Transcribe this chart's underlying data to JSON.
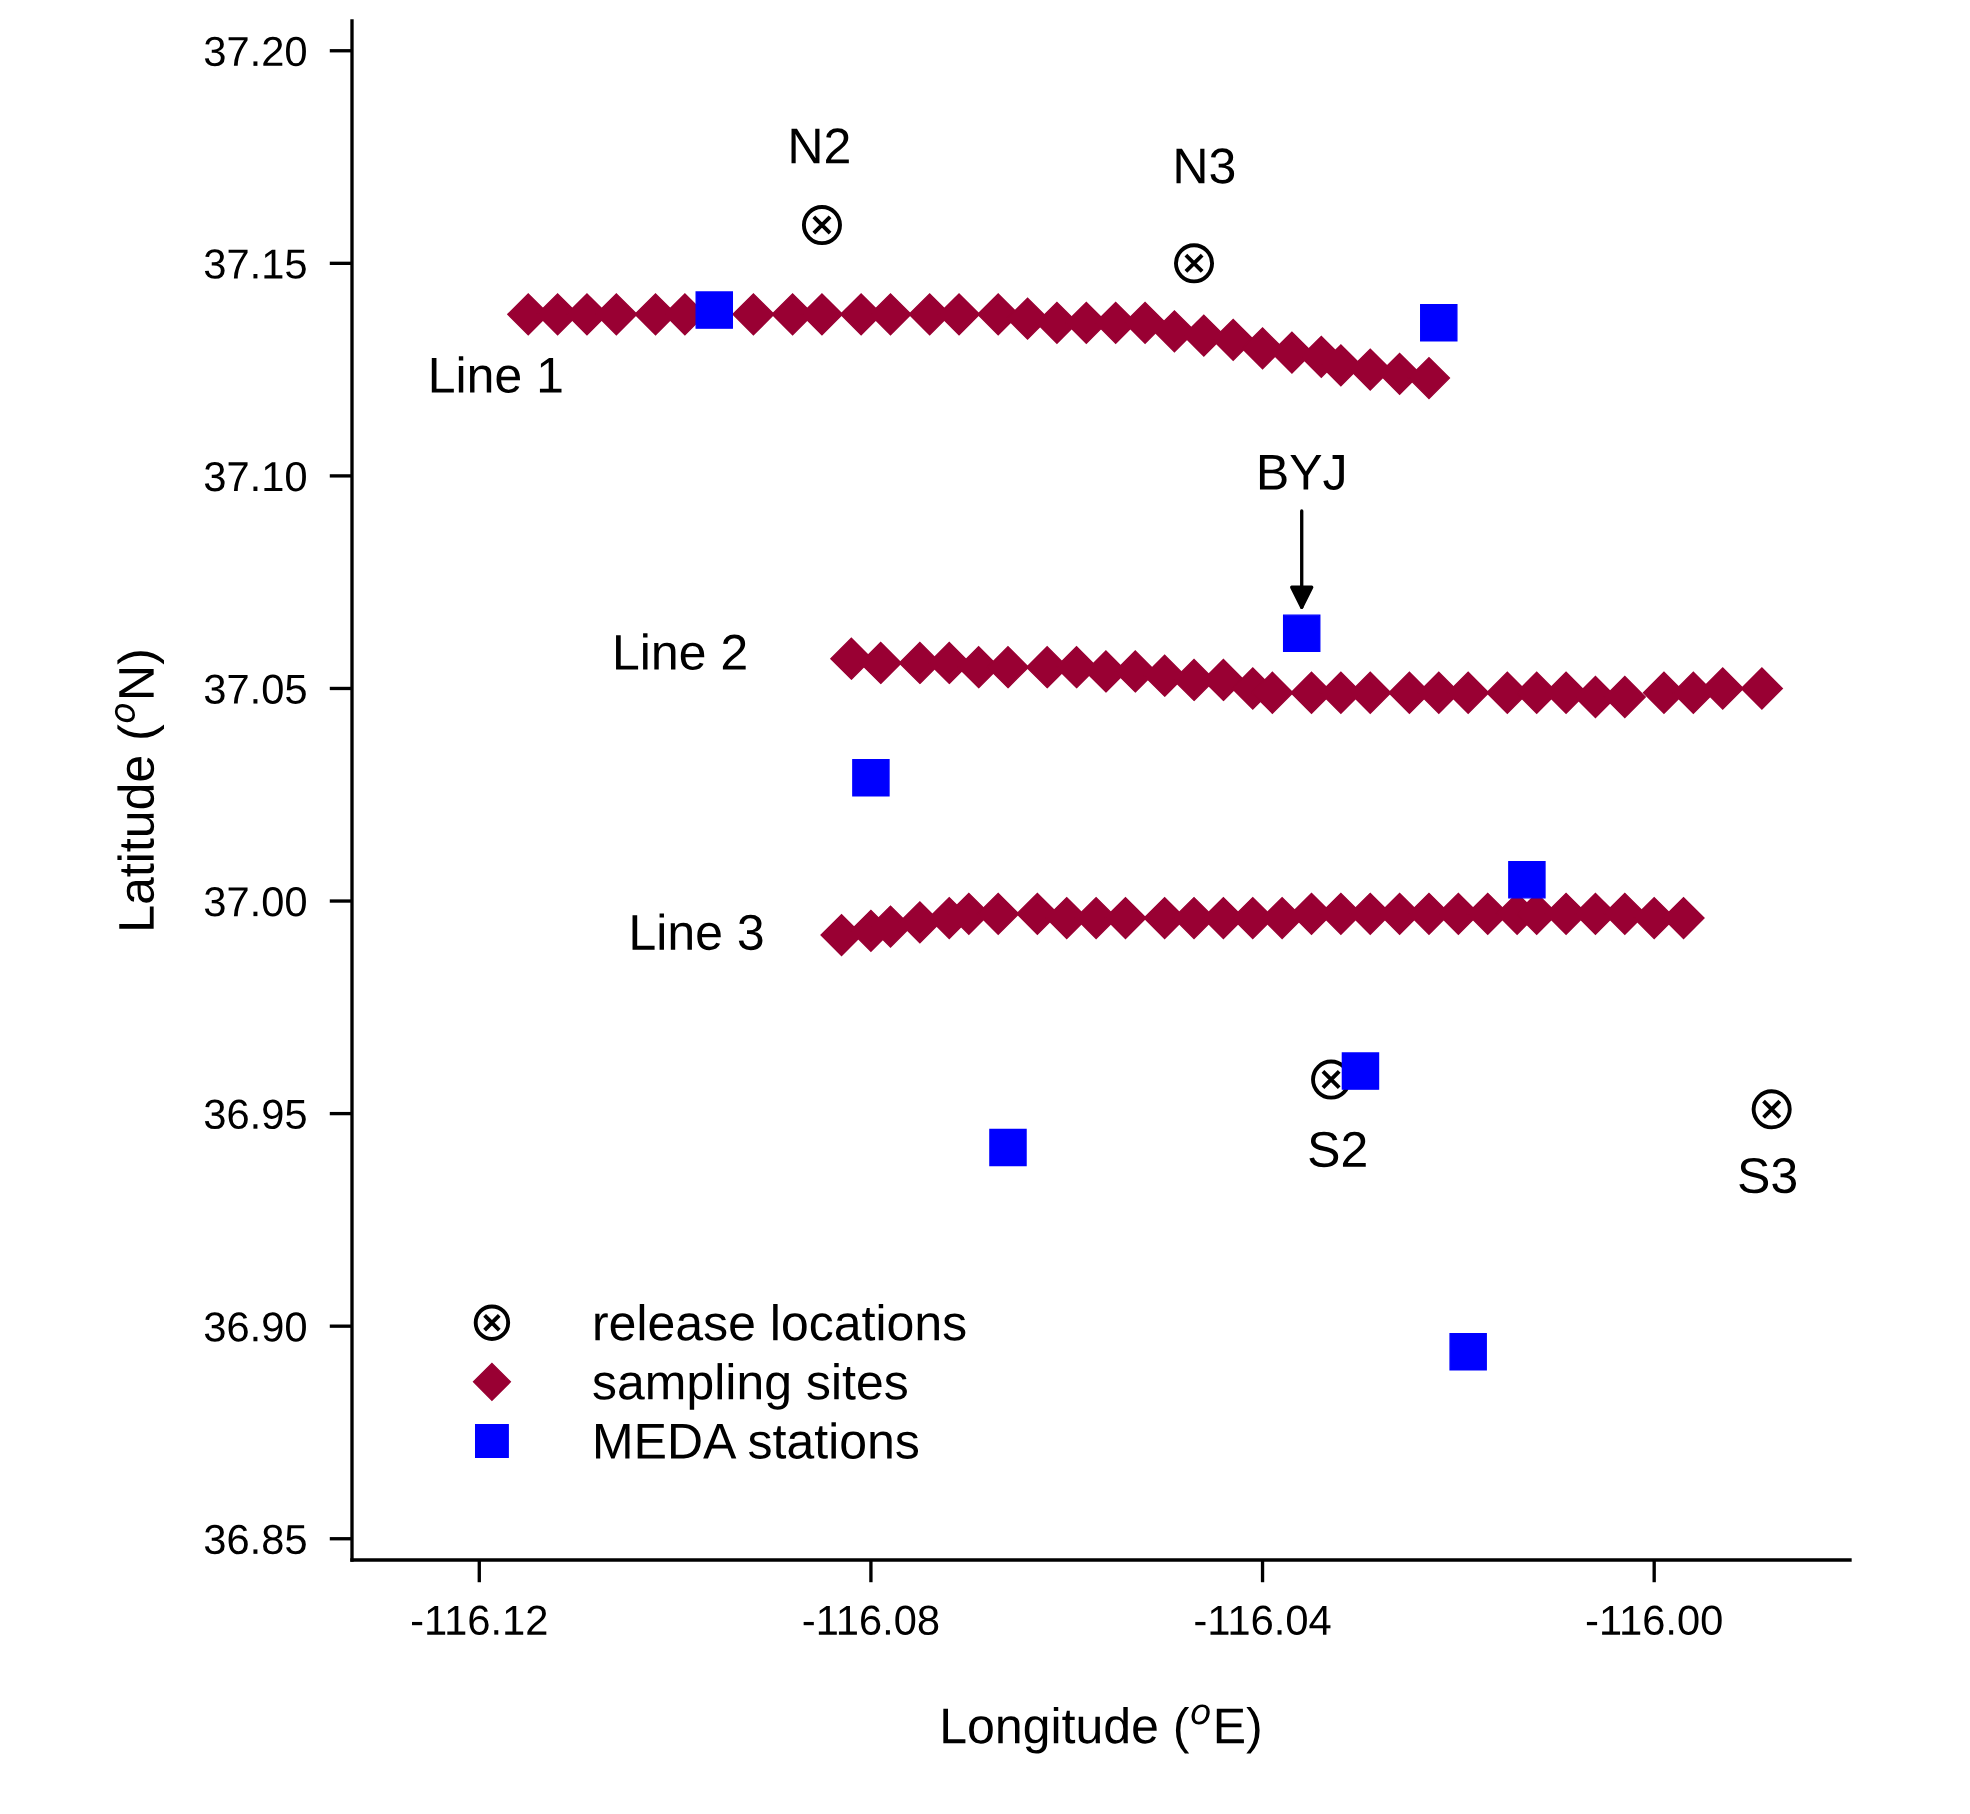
{
  "chart_data": {
    "type": "scatter",
    "xlabel": "Longitude ($^{o}$E)",
    "ylabel": "Latitude ($^{o}$N)",
    "xlim": [
      -116.133,
      -115.98
    ],
    "ylim": [
      36.845,
      37.207
    ],
    "xticks": [
      {
        "value": -116.12,
        "label": "-116.12"
      },
      {
        "value": -116.08,
        "label": "-116.08"
      },
      {
        "value": -116.04,
        "label": "-116.04"
      },
      {
        "value": -116.0,
        "label": "-116.00"
      }
    ],
    "yticks": [
      {
        "value": 36.85,
        "label": "36.85"
      },
      {
        "value": 36.9,
        "label": "36.90"
      },
      {
        "value": 36.95,
        "label": "36.95"
      },
      {
        "value": 37.0,
        "label": "37.00"
      },
      {
        "value": 37.05,
        "label": "37.05"
      },
      {
        "value": 37.1,
        "label": "37.10"
      },
      {
        "value": 37.15,
        "label": "37.15"
      },
      {
        "value": 37.2,
        "label": "37.20"
      }
    ],
    "grid": false,
    "legend": "bottom left",
    "series": [
      {
        "name": "release locations",
        "color": "#000000",
        "marker": "cross",
        "x": [
          -116.085,
          -116.047,
          -116.033,
          -115.988
        ],
        "values": [
          37.159,
          37.15,
          36.958,
          36.951
        ]
      },
      {
        "name": "sampling sites",
        "color": "#990033",
        "marker": "diamond",
        "x": [
          -116.115,
          -116.112,
          -116.109,
          -116.106,
          -116.102,
          -116.099,
          -116.096,
          -116.092,
          -116.088,
          -116.085,
          -116.081,
          -116.078,
          -116.074,
          -116.071,
          -116.067,
          -116.064,
          -116.061,
          -116.058,
          -116.055,
          -116.052,
          -116.049,
          -116.046,
          -116.043,
          -116.04,
          -116.037,
          -116.034,
          -116.032,
          -116.029,
          -116.026,
          -116.023,
          -116.082,
          -116.079,
          -116.075,
          -116.072,
          -116.069,
          -116.066,
          -116.062,
          -116.059,
          -116.056,
          -116.053,
          -116.05,
          -116.047,
          -116.044,
          -116.041,
          -116.039,
          -116.035,
          -116.032,
          -116.029,
          -116.025,
          -116.022,
          -116.019,
          -116.015,
          -116.012,
          -116.009,
          -116.006,
          -116.003,
          -115.999,
          -115.996,
          -115.993,
          -115.989,
          -116.083,
          -116.08,
          -116.078,
          -116.075,
          -116.072,
          -116.07,
          -116.067,
          -116.063,
          -116.06,
          -116.057,
          -116.054,
          -116.05,
          -116.047,
          -116.044,
          -116.041,
          -116.038,
          -116.035,
          -116.032,
          -116.029,
          -116.026,
          -116.023,
          -116.02,
          -116.017,
          -116.014,
          -116.012,
          -116.009,
          -116.006,
          -116.003,
          -116.0,
          -115.997
        ],
        "values": [
          37.138,
          37.138,
          37.138,
          37.138,
          37.138,
          37.138,
          null,
          37.138,
          37.138,
          37.138,
          37.138,
          37.138,
          37.138,
          37.138,
          37.138,
          37.137,
          37.136,
          37.136,
          37.136,
          37.136,
          37.134,
          37.133,
          37.132,
          37.13,
          37.129,
          37.128,
          37.126,
          37.125,
          37.124,
          37.123,
          37.057,
          37.056,
          37.056,
          37.056,
          37.055,
          37.055,
          37.055,
          37.055,
          37.054,
          37.054,
          37.053,
          37.052,
          37.052,
          37.05,
          37.049,
          37.049,
          37.049,
          37.049,
          37.049,
          37.049,
          37.049,
          37.049,
          37.049,
          37.049,
          37.048,
          37.048,
          37.049,
          37.049,
          37.05,
          37.05,
          36.992,
          36.993,
          36.994,
          36.995,
          36.996,
          36.997,
          36.997,
          36.997,
          36.996,
          36.996,
          36.996,
          36.996,
          36.996,
          36.996,
          36.996,
          36.996,
          36.997,
          36.997,
          36.997,
          36.997,
          36.997,
          36.997,
          36.997,
          36.997,
          36.997,
          36.997,
          36.997,
          36.997,
          36.996,
          36.996
        ]
      },
      {
        "name": "MEDA stations",
        "color": "#0000ff",
        "marker": "square",
        "x": [
          -116.096,
          -116.022,
          -116.036,
          -116.08,
          -116.013,
          -116.03,
          -116.066,
          -116.019
        ],
        "values": [
          37.139,
          37.136,
          37.063,
          37.029,
          37.005,
          36.96,
          36.942,
          36.894
        ]
      }
    ],
    "annotations": [
      "N2",
      "N3",
      "Line 1",
      {
        "text": "BYJ",
        "x": -116.036,
        "y": 37.063
      },
      "Line 2",
      "Line 3",
      "S2",
      "S3"
    ]
  }
}
